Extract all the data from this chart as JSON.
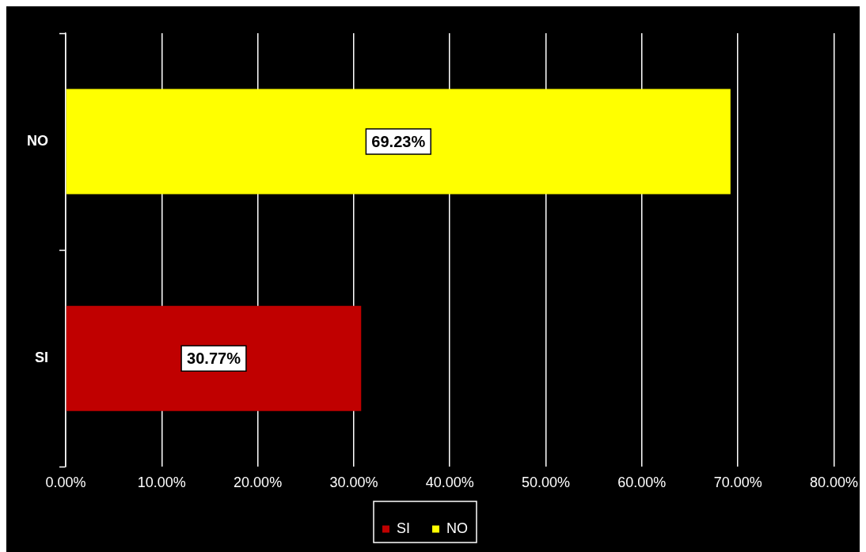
{
  "chart_data": {
    "type": "bar",
    "orientation": "horizontal",
    "stacked": true,
    "categories": [
      "NO",
      "SI"
    ],
    "series": [
      {
        "name": "SI",
        "color": "#c00000",
        "values": [
          null,
          30.77
        ],
        "value_labels": [
          null,
          "30.77%"
        ]
      },
      {
        "name": "NO",
        "color": "#ffff00",
        "values": [
          69.23,
          null
        ],
        "value_labels": [
          "69.23%",
          null
        ]
      }
    ],
    "xlim": [
      0,
      80
    ],
    "xticks": [
      {
        "value": 0,
        "label": "0.00%"
      },
      {
        "value": 10,
        "label": "10.00%"
      },
      {
        "value": 20,
        "label": "20.00%"
      },
      {
        "value": 30,
        "label": "30.00%"
      },
      {
        "value": 40,
        "label": "40.00%"
      },
      {
        "value": 50,
        "label": "50.00%"
      },
      {
        "value": 60,
        "label": "60.00%"
      },
      {
        "value": 70,
        "label": "70.00%"
      },
      {
        "value": 80,
        "label": "80.00%"
      }
    ],
    "grid": "x",
    "legend": "bottom"
  }
}
